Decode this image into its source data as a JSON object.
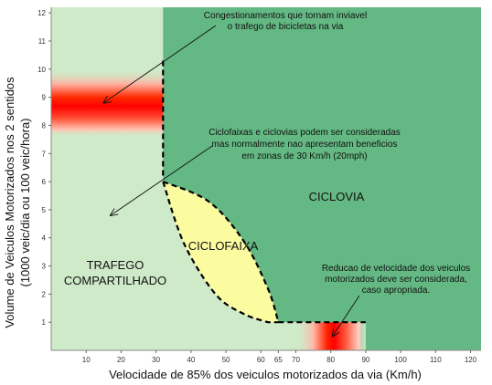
{
  "chart_data": {
    "type": "area",
    "xlabel": "Velocidade de 85% dos veiculos motorizados da via (Km/h)",
    "ylabel": "Volume de Veiculos Motorizados nos 2 sentidos",
    "ylabel_sub": "(1000 veic/dia ou 100 veic/hora)",
    "xlim": [
      0,
      123
    ],
    "ylim": [
      0,
      12.2
    ],
    "x_ticks": [
      10,
      20,
      30,
      40,
      50,
      60,
      65,
      70,
      80,
      90,
      100,
      110,
      120
    ],
    "y_ticks": [
      1,
      2,
      3,
      4,
      5,
      6,
      7,
      8,
      9,
      10,
      11,
      12
    ],
    "grid": false,
    "colors": {
      "trafego_compartilhado": "#cfeac8",
      "ciclovia": "#64b883",
      "ciclofaixa": "#fbfba0",
      "conflito": "#ff0000",
      "boundary": "#000000"
    },
    "regions": [
      {
        "label": "TRAFEGO",
        "label2": "COMPARTILHADO"
      },
      {
        "label": "CICLOFAIXA"
      },
      {
        "label": "CICLOVIA"
      }
    ],
    "boundaries": {
      "vertical": {
        "x": 32,
        "y_from": 6.1,
        "y_to": 10.3
      },
      "ciclofaixa_outer": [
        [
          32,
          6.0
        ],
        [
          45,
          5.3
        ],
        [
          55,
          3.9
        ],
        [
          62,
          2.2
        ],
        [
          65,
          1.0
        ]
      ],
      "ciclofaixa_inner": [
        [
          32,
          6.0
        ],
        [
          38,
          3.8
        ],
        [
          47,
          2.0
        ],
        [
          55,
          1.3
        ],
        [
          62,
          1.0
        ]
      ],
      "horizontal": {
        "y": 1.0,
        "x_from": 65,
        "x_to": 90
      }
    },
    "hotspots": [
      {
        "x_from": 0,
        "x_to": 32,
        "y_from": 7.6,
        "y_to": 10.0,
        "peak_y": 8.8
      },
      {
        "x_from": 70,
        "x_to": 90,
        "y_from": 0,
        "y_to": 1.0,
        "peak_x": 80.5
      }
    ],
    "annotations": [
      {
        "lines": [
          "Congestionamentos que tornam inviavel",
          "o trafego de bicicletas na via"
        ],
        "arrow_to": [
          15,
          8.8
        ]
      },
      {
        "lines": [
          "Ciclofaixas e ciclovias podem ser consideradas",
          "mas normalmente nao apresentam beneficios",
          "em zonas de 30 Km/h (20mph)"
        ],
        "arrow_to": [
          17,
          4.8
        ]
      },
      {
        "lines": [
          "Reducao de velocidade dos veiculos",
          "motorizados deve ser considerada,",
          "caso apropriada."
        ],
        "arrow_to": [
          80.5,
          0.5
        ]
      }
    ]
  }
}
